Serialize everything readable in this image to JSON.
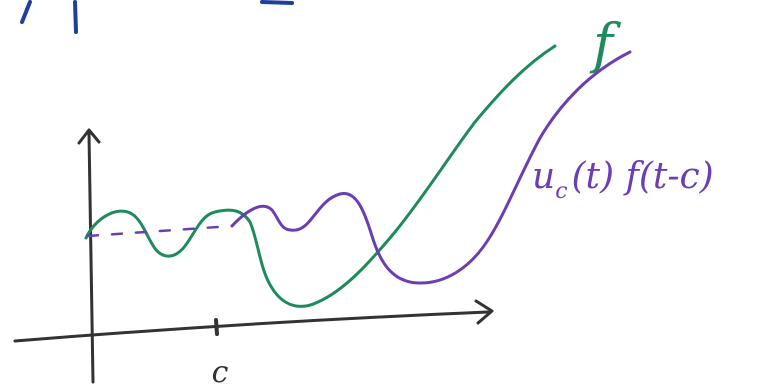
{
  "labels": {
    "f": "f",
    "shifted": {
      "base": "u",
      "subscript": "c",
      "rest": "(t) f(t-c)"
    },
    "c": "c"
  }
}
